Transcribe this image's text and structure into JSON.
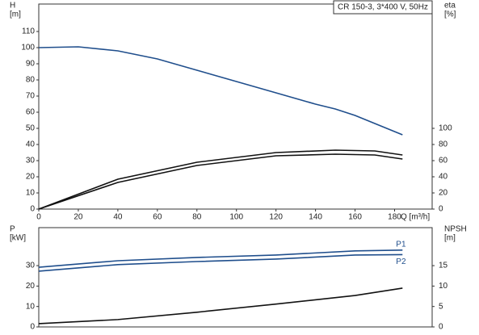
{
  "chart_data": [
    {
      "type": "line",
      "title": "CR 150-3, 3*400 V, 50Hz",
      "ylabel": [
        "H",
        "[m]"
      ],
      "y2label": [
        "eta",
        "[%]"
      ],
      "xlabel": "Q [m³/h]",
      "xlim": [
        0,
        199
      ],
      "xticks": [
        0,
        20,
        40,
        60,
        80,
        100,
        120,
        140,
        160,
        180
      ],
      "ylim": [
        0,
        127
      ],
      "yticks": [
        0,
        10,
        20,
        30,
        40,
        50,
        60,
        70,
        80,
        90,
        100,
        110
      ],
      "y2lim": [
        0,
        254
      ],
      "y2ticks": [
        0,
        20,
        40,
        60,
        80,
        100
      ],
      "series": [
        {
          "color": "#1f4e8c",
          "x": [
            0,
            20,
            40,
            60,
            80,
            100,
            120,
            140,
            150,
            160,
            170,
            180,
            184
          ],
          "values": [
            100,
            100.5,
            98,
            93,
            86,
            79,
            72,
            65,
            62,
            58,
            53,
            48,
            46
          ]
        },
        {
          "color": "#111111",
          "axis": "y2",
          "x": [
            0,
            40,
            80,
            120,
            150,
            170,
            184
          ],
          "values": [
            0,
            37,
            58,
            70,
            73,
            72,
            67
          ]
        },
        {
          "color": "#111111",
          "axis": "y2",
          "x": [
            0,
            40,
            80,
            120,
            150,
            170,
            184
          ],
          "values": [
            0,
            33,
            54,
            66,
            68,
            67,
            62
          ]
        }
      ]
    },
    {
      "type": "line",
      "ylabel": [
        "P",
        "[kW]"
      ],
      "y2label": [
        "NPSH",
        "[m]"
      ],
      "xlim": [
        0,
        199
      ],
      "ylim": [
        0,
        48.6
      ],
      "yticks": [
        0,
        10,
        20,
        30
      ],
      "y2lim": [
        0,
        24.3
      ],
      "y2ticks": [
        0,
        5,
        10,
        15
      ],
      "series": [
        {
          "name": "P1",
          "color": "#1f4e8c",
          "x": [
            0,
            40,
            80,
            120,
            160,
            184
          ],
          "values": [
            29.2,
            32.4,
            34,
            35.2,
            37.2,
            37.6
          ]
        },
        {
          "name": "P2",
          "color": "#1f4e8c",
          "x": [
            0,
            40,
            80,
            120,
            160,
            184
          ],
          "values": [
            27.3,
            30.5,
            32,
            33.2,
            35.2,
            35.4
          ]
        },
        {
          "color": "#111111",
          "axis": "y2",
          "x": [
            0,
            40,
            80,
            120,
            160,
            184
          ],
          "values": [
            0.8,
            1.8,
            3.6,
            5.6,
            7.7,
            9.5
          ]
        }
      ]
    }
  ]
}
